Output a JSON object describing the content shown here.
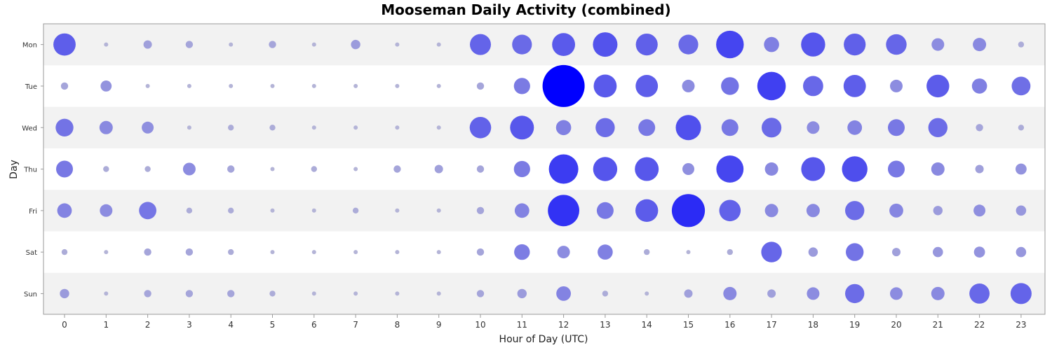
{
  "chart_data": {
    "type": "scatter",
    "title": "Mooseman Daily Activity (combined)",
    "xlabel": "Hour of Day (UTC)",
    "ylabel": "Day",
    "x_ticks": [
      "0",
      "1",
      "2",
      "3",
      "4",
      "5",
      "6",
      "7",
      "8",
      "9",
      "10",
      "11",
      "12",
      "13",
      "14",
      "15",
      "16",
      "17",
      "18",
      "19",
      "20",
      "21",
      "22",
      "23"
    ],
    "days": [
      "Mon",
      "Tue",
      "Wed",
      "Thu",
      "Fri",
      "Sat",
      "Sun"
    ],
    "max_value": 100,
    "color_low": "#c8c8d2",
    "color_high": "#0000ff",
    "band_color": "#f2f2f2",
    "grid": false,
    "values": [
      [
        28,
        1,
        4,
        3,
        1,
        3,
        1,
        5,
        1,
        1,
        25,
        22,
        30,
        34,
        27,
        22,
        43,
        13,
        33,
        27,
        24,
        9,
        10,
        2
      ],
      [
        3,
        7,
        1,
        1,
        1,
        1,
        1,
        1,
        1,
        1,
        3,
        15,
        100,
        30,
        28,
        9,
        18,
        46,
        23,
        28,
        9,
        29,
        13,
        20
      ],
      [
        18,
        10,
        8,
        1,
        2,
        2,
        1,
        1,
        1,
        1,
        26,
        32,
        13,
        21,
        16,
        36,
        16,
        22,
        9,
        12,
        16,
        21,
        3,
        2
      ],
      [
        16,
        2,
        2,
        9,
        3,
        1,
        2,
        1,
        3,
        4,
        3,
        15,
        49,
        33,
        32,
        8,
        42,
        10,
        32,
        37,
        16,
        10,
        4,
        7
      ],
      [
        12,
        9,
        17,
        2,
        2,
        1,
        1,
        2,
        1,
        1,
        3,
        12,
        56,
        16,
        29,
        62,
        26,
        10,
        10,
        21,
        11,
        5,
        8,
        6
      ],
      [
        2,
        1,
        3,
        3,
        2,
        1,
        1,
        1,
        1,
        1,
        3,
        14,
        9,
        13,
        2,
        1,
        2,
        24,
        5,
        18,
        4,
        6,
        7,
        6
      ],
      [
        5,
        1,
        3,
        3,
        3,
        2,
        1,
        1,
        1,
        1,
        3,
        5,
        12,
        2,
        1,
        4,
        10,
        4,
        9,
        21,
        9,
        10,
        23,
        25
      ]
    ]
  }
}
